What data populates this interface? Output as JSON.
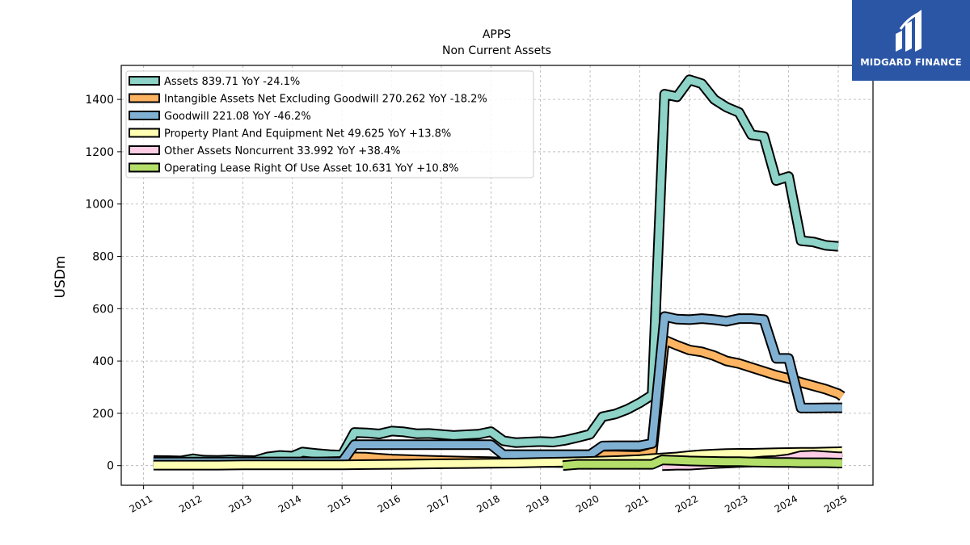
{
  "brand": {
    "name": "MIDGARD FINANCE",
    "bg_color": "#2b56a6",
    "icon": "midgard-logo-icon"
  },
  "chart_data": {
    "type": "area",
    "title": "APPS",
    "subtitle": "Non Current  Assets",
    "ylabel": "USDm",
    "xlabel": "",
    "ylim": [
      -75,
      1530
    ],
    "xlim": [
      2010.55,
      2025.7
    ],
    "yticks": [
      0,
      200,
      400,
      600,
      800,
      1000,
      1200,
      1400
    ],
    "xticks": [
      "2011",
      "2012",
      "2013",
      "2014",
      "2015",
      "2016",
      "2017",
      "2018",
      "2019",
      "2020",
      "2021",
      "2022",
      "2023",
      "2024",
      "2025"
    ],
    "grid": true,
    "legend_position": "top-left",
    "series": [
      {
        "name": "Assets  839.71 YoY -24.1%",
        "color": "#8dd3c7",
        "points": [
          [
            2011.2,
            20
          ],
          [
            2011.5,
            19
          ],
          [
            2011.75,
            18
          ],
          [
            2012.0,
            26
          ],
          [
            2012.2,
            21
          ],
          [
            2012.5,
            20
          ],
          [
            2012.75,
            22
          ],
          [
            2013.0,
            20
          ],
          [
            2013.25,
            19
          ],
          [
            2013.5,
            33
          ],
          [
            2013.75,
            39
          ],
          [
            2014.0,
            36
          ],
          [
            2014.2,
            52
          ],
          [
            2014.5,
            46
          ],
          [
            2014.75,
            42
          ],
          [
            2015.0,
            40
          ],
          [
            2015.25,
            127
          ],
          [
            2015.5,
            125
          ],
          [
            2015.75,
            121
          ],
          [
            2016.0,
            132
          ],
          [
            2016.25,
            129
          ],
          [
            2016.5,
            122
          ],
          [
            2016.75,
            123
          ],
          [
            2017.0,
            119
          ],
          [
            2017.25,
            115
          ],
          [
            2017.5,
            118
          ],
          [
            2017.75,
            120
          ],
          [
            2018.0,
            130
          ],
          [
            2018.25,
            95
          ],
          [
            2018.5,
            88
          ],
          [
            2018.75,
            90
          ],
          [
            2019.0,
            92
          ],
          [
            2019.25,
            90
          ],
          [
            2019.5,
            97
          ],
          [
            2019.75,
            108
          ],
          [
            2020.0,
            120
          ],
          [
            2020.25,
            187
          ],
          [
            2020.5,
            197
          ],
          [
            2020.75,
            215
          ],
          [
            2021.0,
            240
          ],
          [
            2021.25,
            270
          ],
          [
            2021.5,
            1420
          ],
          [
            2021.75,
            1410
          ],
          [
            2022.0,
            1475
          ],
          [
            2022.25,
            1460
          ],
          [
            2022.5,
            1400
          ],
          [
            2022.75,
            1370
          ],
          [
            2023.0,
            1350
          ],
          [
            2023.25,
            1265
          ],
          [
            2023.5,
            1258
          ],
          [
            2023.75,
            1090
          ],
          [
            2024.0,
            1105
          ],
          [
            2024.25,
            860
          ],
          [
            2024.5,
            855
          ],
          [
            2024.75,
            842
          ],
          [
            2025.0,
            838
          ]
        ]
      },
      {
        "name": "Intangible Assets Net Excluding Goodwill  270.262 YoY -18.2%",
        "color": "#fdb462",
        "points": [
          [
            2011.2,
            14
          ],
          [
            2011.75,
            13
          ],
          [
            2012.5,
            13
          ],
          [
            2013.0,
            13
          ],
          [
            2013.5,
            14
          ],
          [
            2014.0,
            14
          ],
          [
            2014.5,
            14
          ],
          [
            2015.0,
            16
          ],
          [
            2015.25,
            33
          ],
          [
            2015.5,
            32
          ],
          [
            2015.75,
            28
          ],
          [
            2016.0,
            25
          ],
          [
            2016.5,
            22
          ],
          [
            2017.0,
            19
          ],
          [
            2017.5,
            17
          ],
          [
            2018.0,
            15
          ],
          [
            2018.25,
            14
          ],
          [
            2018.75,
            13
          ],
          [
            2019.25,
            12
          ],
          [
            2019.75,
            11
          ],
          [
            2020.0,
            10
          ],
          [
            2020.25,
            40
          ],
          [
            2020.5,
            40
          ],
          [
            2020.75,
            39
          ],
          [
            2021.0,
            38
          ],
          [
            2021.25,
            50
          ],
          [
            2021.5,
            480
          ],
          [
            2021.75,
            460
          ],
          [
            2022.0,
            442
          ],
          [
            2022.25,
            435
          ],
          [
            2022.5,
            420
          ],
          [
            2022.75,
            400
          ],
          [
            2023.0,
            390
          ],
          [
            2023.25,
            375
          ],
          [
            2023.5,
            360
          ],
          [
            2023.75,
            345
          ],
          [
            2024.0,
            333
          ],
          [
            2024.25,
            318
          ],
          [
            2024.5,
            305
          ],
          [
            2024.75,
            292
          ],
          [
            2025.0,
            275
          ],
          [
            2025.08,
            265
          ]
        ]
      },
      {
        "name": "Goodwill  221.08 YoY -46.2%",
        "color": "#80b1d3",
        "points": [
          [
            2011.2,
            14
          ],
          [
            2011.75,
            14
          ],
          [
            2012.5,
            14
          ],
          [
            2013.0,
            14
          ],
          [
            2013.5,
            14
          ],
          [
            2014.0,
            14
          ],
          [
            2014.5,
            14
          ],
          [
            2015.0,
            14
          ],
          [
            2015.25,
            80
          ],
          [
            2015.5,
            80
          ],
          [
            2016.0,
            80
          ],
          [
            2016.5,
            80
          ],
          [
            2017.0,
            80
          ],
          [
            2017.5,
            80
          ],
          [
            2018.0,
            80
          ],
          [
            2018.25,
            42
          ],
          [
            2018.75,
            42
          ],
          [
            2019.25,
            42
          ],
          [
            2019.75,
            42
          ],
          [
            2020.0,
            42
          ],
          [
            2020.25,
            75
          ],
          [
            2020.5,
            76
          ],
          [
            2020.75,
            76
          ],
          [
            2021.0,
            76
          ],
          [
            2021.25,
            85
          ],
          [
            2021.5,
            570
          ],
          [
            2021.75,
            560
          ],
          [
            2022.0,
            558
          ],
          [
            2022.25,
            562
          ],
          [
            2022.5,
            558
          ],
          [
            2022.75,
            552
          ],
          [
            2023.0,
            562
          ],
          [
            2023.25,
            562
          ],
          [
            2023.5,
            558
          ],
          [
            2023.75,
            410
          ],
          [
            2024.0,
            410
          ],
          [
            2024.25,
            220
          ],
          [
            2024.5,
            220
          ],
          [
            2024.75,
            221
          ],
          [
            2025.0,
            221
          ],
          [
            2025.08,
            221
          ]
        ]
      },
      {
        "name": "Property Plant And Equipment Net  49.625 YoY +13.8%",
        "color": "#ffffb3",
        "points": [
          [
            2011.2,
            2
          ],
          [
            2011.75,
            2
          ],
          [
            2012.5,
            2
          ],
          [
            2013.0,
            3
          ],
          [
            2013.5,
            3
          ],
          [
            2014.0,
            3
          ],
          [
            2014.5,
            3
          ],
          [
            2015.0,
            3
          ],
          [
            2015.5,
            4
          ],
          [
            2016.0,
            5
          ],
          [
            2016.5,
            6
          ],
          [
            2017.0,
            7
          ],
          [
            2017.5,
            8
          ],
          [
            2018.0,
            9
          ],
          [
            2018.5,
            10
          ],
          [
            2019.0,
            12
          ],
          [
            2019.5,
            14
          ],
          [
            2020.0,
            16
          ],
          [
            2020.5,
            19
          ],
          [
            2021.0,
            23
          ],
          [
            2021.25,
            27
          ],
          [
            2021.5,
            30
          ],
          [
            2021.75,
            33
          ],
          [
            2022.0,
            38
          ],
          [
            2022.25,
            42
          ],
          [
            2022.5,
            44
          ],
          [
            2022.75,
            46
          ],
          [
            2023.0,
            47
          ],
          [
            2023.25,
            47
          ],
          [
            2023.5,
            48
          ],
          [
            2023.75,
            49
          ],
          [
            2024.0,
            50
          ],
          [
            2024.25,
            51
          ],
          [
            2024.5,
            51
          ],
          [
            2024.75,
            52
          ],
          [
            2025.0,
            53
          ],
          [
            2025.08,
            54
          ]
        ]
      },
      {
        "name": "Other Assets Noncurrent  33.992 YoY +38.4%",
        "color": "#fccde5",
        "points": [
          [
            2021.45,
            0
          ],
          [
            2021.75,
            2
          ],
          [
            2022.0,
            2
          ],
          [
            2022.25,
            5
          ],
          [
            2022.5,
            8
          ],
          [
            2022.75,
            10
          ],
          [
            2023.0,
            12
          ],
          [
            2023.25,
            14
          ],
          [
            2023.5,
            18
          ],
          [
            2023.75,
            20
          ],
          [
            2024.0,
            26
          ],
          [
            2024.25,
            38
          ],
          [
            2024.5,
            40
          ],
          [
            2024.75,
            37
          ],
          [
            2025.0,
            34
          ],
          [
            2025.08,
            34
          ]
        ]
      },
      {
        "name": "Operating Lease Right Of Use Asset  10.631 YoY +10.8%",
        "color": "#b3de69",
        "points": [
          [
            2019.45,
            0
          ],
          [
            2019.75,
            5
          ],
          [
            2020.0,
            5
          ],
          [
            2020.25,
            5
          ],
          [
            2020.5,
            5
          ],
          [
            2020.75,
            5
          ],
          [
            2021.0,
            5
          ],
          [
            2021.25,
            5
          ],
          [
            2021.45,
            22
          ],
          [
            2021.75,
            20
          ],
          [
            2022.0,
            18
          ],
          [
            2022.25,
            17
          ],
          [
            2022.5,
            16
          ],
          [
            2022.75,
            15
          ],
          [
            2023.0,
            15
          ],
          [
            2023.25,
            14
          ],
          [
            2023.5,
            13
          ],
          [
            2023.75,
            12
          ],
          [
            2024.0,
            12
          ],
          [
            2024.25,
            11
          ],
          [
            2024.5,
            11
          ],
          [
            2024.75,
            11
          ],
          [
            2025.0,
            10
          ],
          [
            2025.08,
            10
          ]
        ]
      }
    ]
  }
}
